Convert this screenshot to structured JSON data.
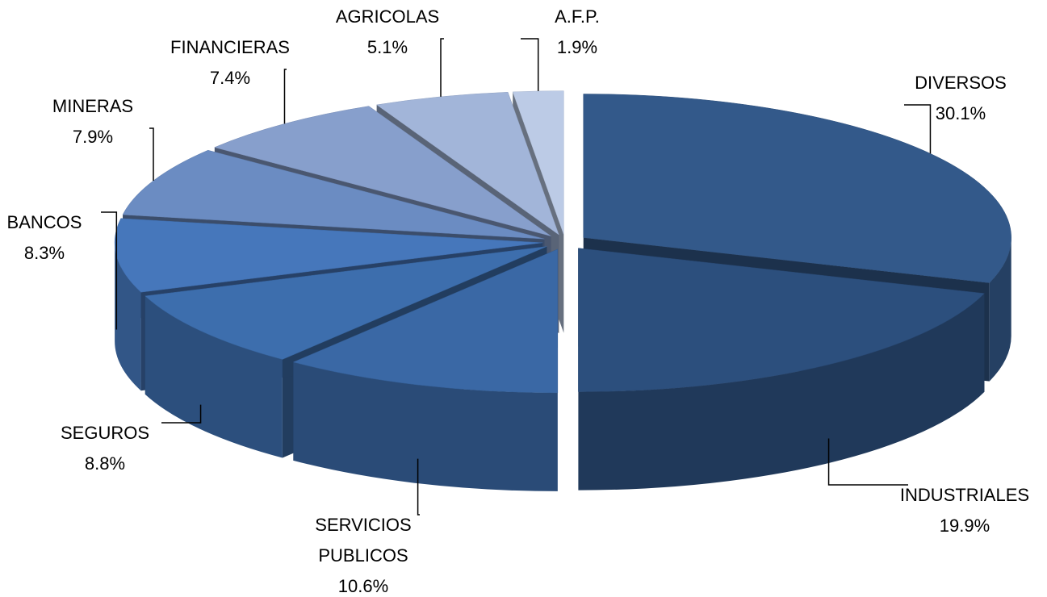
{
  "chart_data": {
    "type": "pie",
    "categories": [
      "DIVERSOS",
      "INDUSTRIALES",
      "SERVICIOS PUBLICOS",
      "SEGUROS",
      "BANCOS",
      "MINERAS",
      "FINANCIERAS",
      "AGRICOLAS",
      "A.F.P."
    ],
    "values": [
      30.1,
      19.9,
      10.6,
      8.8,
      8.3,
      7.9,
      7.4,
      5.1,
      1.9
    ],
    "value_labels": [
      "30.1%",
      "19.9%",
      "10.6%",
      "8.8%",
      "8.3%",
      "7.9%",
      "7.4%",
      "5.1%",
      "1.9%"
    ],
    "colors": [
      "#33598a",
      "#2c4f7d",
      "#3a68a5",
      "#3d6ead",
      "#4677bb",
      "#6b8cc2",
      "#879fcc",
      "#a2b5d9",
      "#bccbe6"
    ]
  }
}
